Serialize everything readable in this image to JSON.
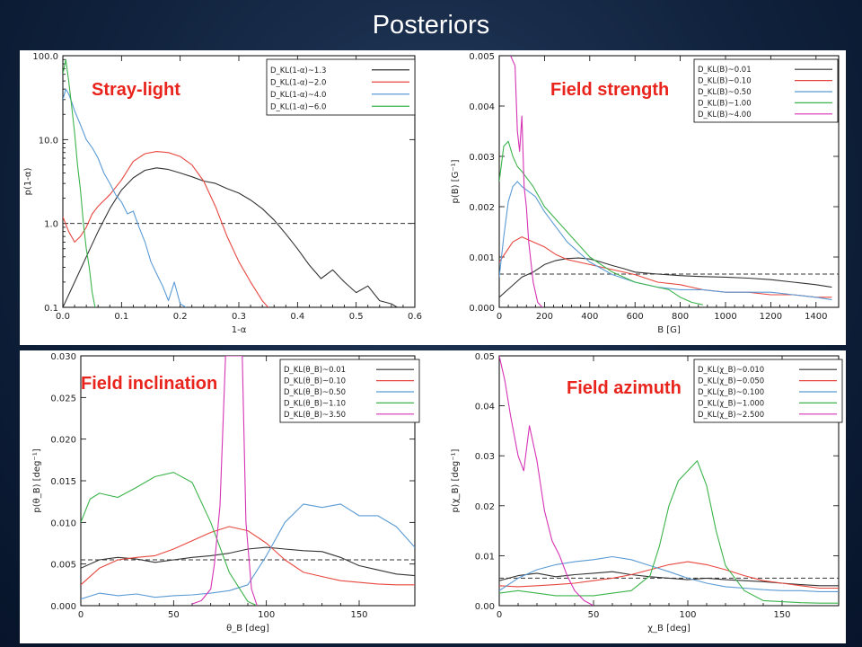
{
  "title": "Posteriors",
  "chart_data": [
    {
      "id": "stray",
      "type": "line",
      "title": "Stray-light",
      "xlabel": "1-α",
      "ylabel": "p(1-α)",
      "xlim": [
        0,
        0.6
      ],
      "ylim": [
        0.1,
        100
      ],
      "yscale": "log",
      "xticks": [
        "0.0",
        "0.1",
        "0.2",
        "0.3",
        "0.4",
        "0.5",
        "0.6"
      ],
      "yticks": [
        "0.1",
        "1.0",
        "10.0",
        "100.0"
      ],
      "legend_placement": "top-right",
      "reference": {
        "style": "dashed",
        "y": 1.0
      },
      "series": [
        {
          "name": "D_KL(1-α)~1.3",
          "color": "#333333",
          "x": [
            0.0,
            0.02,
            0.04,
            0.06,
            0.08,
            0.1,
            0.12,
            0.14,
            0.16,
            0.18,
            0.2,
            0.22,
            0.24,
            0.26,
            0.28,
            0.3,
            0.32,
            0.34,
            0.36,
            0.38,
            0.4,
            0.42,
            0.44,
            0.46,
            0.48,
            0.5,
            0.52,
            0.54,
            0.56,
            0.57
          ],
          "y": [
            0.1,
            0.2,
            0.4,
            0.8,
            1.5,
            2.5,
            3.5,
            4.3,
            4.6,
            4.4,
            4.0,
            3.6,
            3.2,
            3.0,
            2.6,
            2.3,
            1.9,
            1.5,
            1.1,
            0.75,
            0.5,
            0.32,
            0.22,
            0.28,
            0.2,
            0.15,
            0.18,
            0.12,
            0.11,
            0.1
          ]
        },
        {
          "name": "D_KL(1-α)~2.0",
          "color": "#e8473f",
          "x": [
            0.0,
            0.01,
            0.02,
            0.03,
            0.04,
            0.05,
            0.06,
            0.08,
            0.1,
            0.12,
            0.14,
            0.16,
            0.18,
            0.2,
            0.22,
            0.24,
            0.26,
            0.28,
            0.3,
            0.32,
            0.34,
            0.35
          ],
          "y": [
            1.2,
            0.8,
            0.6,
            0.7,
            0.9,
            1.3,
            1.6,
            2.2,
            3.3,
            5.5,
            6.8,
            7.2,
            7.0,
            6.3,
            5.0,
            3.2,
            1.6,
            0.7,
            0.35,
            0.2,
            0.12,
            0.1
          ]
        },
        {
          "name": "D_KL(1-α)~4.0",
          "color": "#5b9bd5",
          "x": [
            0.0,
            0.005,
            0.01,
            0.015,
            0.02,
            0.03,
            0.04,
            0.05,
            0.06,
            0.07,
            0.08,
            0.09,
            0.1,
            0.11,
            0.12,
            0.13,
            0.14,
            0.15,
            0.16,
            0.17,
            0.18,
            0.19,
            0.2,
            0.21
          ],
          "y": [
            30.0,
            40.0,
            35.0,
            28.0,
            22.0,
            15.0,
            10.0,
            8.0,
            6.0,
            4.0,
            3.0,
            2.2,
            1.8,
            1.3,
            1.4,
            0.9,
            0.6,
            0.35,
            0.25,
            0.18,
            0.12,
            0.2,
            0.11,
            0.1
          ]
        },
        {
          "name": "D_KL(1-α)~6.0",
          "color": "#3cb44b",
          "x": [
            0.0,
            0.005,
            0.01,
            0.015,
            0.02,
            0.025,
            0.03,
            0.035,
            0.04,
            0.045,
            0.05,
            0.055
          ],
          "y": [
            60.0,
            90.0,
            50.0,
            25.0,
            12.0,
            5.0,
            2.5,
            1.0,
            0.5,
            0.3,
            0.15,
            0.1
          ]
        }
      ]
    },
    {
      "id": "strength",
      "type": "line",
      "title": "Field strength",
      "xlabel": "B [G]",
      "ylabel": "p(B) [G⁻¹]",
      "xlim": [
        0,
        1500
      ],
      "ylim": [
        0,
        0.005
      ],
      "yscale": "linear",
      "xticks": [
        "0",
        "200",
        "400",
        "600",
        "800",
        "1000",
        "1200",
        "1400"
      ],
      "yticks": [
        "0.000",
        "0.001",
        "0.002",
        "0.003",
        "0.004",
        "0.005"
      ],
      "legend_placement": "top-right",
      "reference": {
        "style": "dashed",
        "y": 0.00066
      },
      "series": [
        {
          "name": "D_KL(B)~0.01",
          "color": "#333333",
          "x": [
            0,
            50,
            100,
            150,
            200,
            250,
            300,
            350,
            400,
            450,
            500,
            550,
            600,
            700,
            800,
            900,
            1000,
            1100,
            1200,
            1300,
            1400,
            1470
          ],
          "y": [
            0.0002,
            0.0004,
            0.0006,
            0.0007,
            0.00085,
            0.00093,
            0.00097,
            0.00098,
            0.00096,
            0.0009,
            0.00083,
            0.00077,
            0.0007,
            0.00066,
            0.00063,
            0.00061,
            0.0006,
            0.00058,
            0.00055,
            0.0005,
            0.00045,
            0.0004
          ]
        },
        {
          "name": "D_KL(B)~0.10",
          "color": "#e8473f",
          "x": [
            0,
            30,
            60,
            100,
            150,
            200,
            250,
            300,
            400,
            500,
            600,
            700,
            800,
            900,
            1000,
            1100,
            1200,
            1300,
            1400,
            1470
          ],
          "y": [
            0.0009,
            0.0011,
            0.0013,
            0.0014,
            0.0013,
            0.0012,
            0.00105,
            0.00095,
            0.00085,
            0.00075,
            0.00065,
            0.0005,
            0.00045,
            0.00035,
            0.0003,
            0.0003,
            0.00025,
            0.00025,
            0.0002,
            0.0002
          ]
        },
        {
          "name": "D_KL(B)~0.50",
          "color": "#5b9bd5",
          "x": [
            0,
            20,
            40,
            60,
            80,
            100,
            130,
            160,
            200,
            250,
            300,
            400,
            500,
            600,
            700,
            800,
            900,
            1000,
            1100,
            1200,
            1300,
            1400,
            1470
          ],
          "y": [
            0.0006,
            0.0014,
            0.0021,
            0.0024,
            0.0025,
            0.0024,
            0.0023,
            0.0022,
            0.0019,
            0.0016,
            0.0013,
            0.0009,
            0.00065,
            0.0005,
            0.0004,
            0.00035,
            0.00035,
            0.0003,
            0.0003,
            0.0003,
            0.00025,
            0.0002,
            0.00015
          ]
        },
        {
          "name": "D_KL(B)~1.00",
          "color": "#3cb44b",
          "x": [
            0,
            20,
            40,
            60,
            80,
            100,
            150,
            200,
            300,
            400,
            500,
            600,
            700,
            750,
            800,
            850,
            900
          ],
          "y": [
            0.0025,
            0.0032,
            0.0033,
            0.003,
            0.0028,
            0.0027,
            0.0024,
            0.002,
            0.0015,
            0.001,
            0.0007,
            0.0005,
            0.0004,
            0.00035,
            0.0002,
            0.0001,
            5e-05
          ]
        },
        {
          "name": "D_KL(B)~4.00",
          "color": "#d633b5",
          "x": [
            50,
            70,
            80,
            90,
            100,
            110,
            120,
            130,
            150,
            170,
            190
          ],
          "y": [
            0.005,
            0.0048,
            0.0035,
            0.0031,
            0.0038,
            0.0024,
            0.002,
            0.0013,
            0.0005,
            0.0001,
            0.0
          ]
        }
      ]
    },
    {
      "id": "inclination",
      "type": "line",
      "title": "Field inclination",
      "xlabel": "θ_B [deg]",
      "ylabel": "p(θ_B) [deg⁻¹]",
      "xlim": [
        0,
        180
      ],
      "ylim": [
        0,
        0.03
      ],
      "yscale": "linear",
      "xticks": [
        "0",
        "50",
        "100",
        "150"
      ],
      "yticks": [
        "0.000",
        "0.005",
        "0.010",
        "0.015",
        "0.020",
        "0.025",
        "0.030"
      ],
      "legend_placement": "top-right",
      "reference": {
        "style": "dashed",
        "y": 0.0055
      },
      "series": [
        {
          "name": "D_KL(θ_B)~0.01",
          "color": "#333333",
          "x": [
            0,
            10,
            20,
            30,
            40,
            50,
            60,
            70,
            80,
            90,
            100,
            110,
            120,
            130,
            140,
            150,
            160,
            170,
            180
          ],
          "y": [
            0.0045,
            0.0055,
            0.0058,
            0.0056,
            0.0052,
            0.0055,
            0.0058,
            0.006,
            0.0063,
            0.0068,
            0.007,
            0.0068,
            0.0066,
            0.0065,
            0.0058,
            0.0048,
            0.0043,
            0.0038,
            0.0036
          ]
        },
        {
          "name": "D_KL(θ_B)~0.10",
          "color": "#e8473f",
          "x": [
            0,
            10,
            20,
            30,
            40,
            50,
            60,
            70,
            80,
            90,
            100,
            110,
            120,
            130,
            140,
            150,
            160,
            170,
            180
          ],
          "y": [
            0.0025,
            0.0045,
            0.0055,
            0.0058,
            0.006,
            0.0068,
            0.0078,
            0.0088,
            0.0095,
            0.009,
            0.0075,
            0.0055,
            0.004,
            0.0035,
            0.003,
            0.0028,
            0.0026,
            0.0025,
            0.0025
          ]
        },
        {
          "name": "D_KL(θ_B)~0.50",
          "color": "#5b9bd5",
          "x": [
            0,
            10,
            20,
            30,
            40,
            50,
            60,
            70,
            80,
            90,
            100,
            110,
            120,
            130,
            140,
            150,
            160,
            170,
            180
          ],
          "y": [
            0.0008,
            0.0015,
            0.0012,
            0.0014,
            0.001,
            0.0012,
            0.0013,
            0.0015,
            0.0018,
            0.0025,
            0.006,
            0.01,
            0.0122,
            0.0118,
            0.0122,
            0.0108,
            0.0108,
            0.0095,
            0.007
          ]
        },
        {
          "name": "D_KL(θ_B)~1.10",
          "color": "#3cb44b",
          "x": [
            0,
            5,
            10,
            20,
            30,
            40,
            50,
            60,
            70,
            80,
            90,
            95
          ],
          "y": [
            0.01,
            0.0128,
            0.0135,
            0.013,
            0.0142,
            0.0155,
            0.016,
            0.0148,
            0.01,
            0.004,
            0.0005,
            0.0
          ]
        },
        {
          "name": "D_KL(θ_B)~3.50",
          "color": "#d633b5",
          "x": [
            60,
            65,
            70,
            72,
            75,
            78,
            80,
            82,
            85,
            87,
            89,
            92,
            95
          ],
          "y": [
            0.0002,
            0.0006,
            0.002,
            0.005,
            0.012,
            0.03,
            0.03,
            0.03,
            0.03,
            0.03,
            0.01,
            0.002,
            0.0
          ]
        }
      ]
    },
    {
      "id": "azimuth",
      "type": "line",
      "title": "Field azimuth",
      "xlabel": "χ_B [deg]",
      "ylabel": "p(χ_B) [deg⁻¹]",
      "xlim": [
        0,
        180
      ],
      "ylim": [
        0,
        0.05
      ],
      "yscale": "linear",
      "xticks": [
        "0",
        "50",
        "100",
        "150"
      ],
      "yticks": [
        "0.00",
        "0.01",
        "0.02",
        "0.03",
        "0.04",
        "0.05"
      ],
      "legend_placement": "top-right",
      "reference": {
        "style": "dashed",
        "y": 0.0055
      },
      "series": [
        {
          "name": "D_KL(χ_B)~0.010",
          "color": "#333333",
          "x": [
            0,
            10,
            20,
            30,
            40,
            50,
            60,
            70,
            80,
            90,
            100,
            110,
            120,
            130,
            140,
            150,
            160,
            170,
            180
          ],
          "y": [
            0.005,
            0.006,
            0.0065,
            0.0058,
            0.0062,
            0.0065,
            0.0068,
            0.0062,
            0.0058,
            0.0055,
            0.0052,
            0.0055,
            0.0052,
            0.005,
            0.0048,
            0.0045,
            0.0042,
            0.004,
            0.004
          ]
        },
        {
          "name": "D_KL(χ_B)~0.050",
          "color": "#e8473f",
          "x": [
            0,
            10,
            20,
            30,
            40,
            50,
            60,
            70,
            80,
            90,
            100,
            110,
            120,
            130,
            140,
            150,
            160,
            170,
            180
          ],
          "y": [
            0.004,
            0.0038,
            0.004,
            0.0042,
            0.0045,
            0.005,
            0.0055,
            0.0062,
            0.0072,
            0.0082,
            0.0088,
            0.0082,
            0.0072,
            0.006,
            0.005,
            0.0045,
            0.004,
            0.0035,
            0.0035
          ]
        },
        {
          "name": "D_KL(χ_B)~0.100",
          "color": "#5b9bd5",
          "x": [
            0,
            10,
            20,
            30,
            40,
            50,
            60,
            70,
            80,
            90,
            100,
            110,
            120,
            130,
            140,
            150,
            160,
            170,
            180
          ],
          "y": [
            0.003,
            0.0055,
            0.0072,
            0.0082,
            0.0088,
            0.0092,
            0.0098,
            0.0092,
            0.008,
            0.0068,
            0.0055,
            0.0045,
            0.0038,
            0.0035,
            0.0032,
            0.003,
            0.003,
            0.0028,
            0.0028
          ]
        },
        {
          "name": "D_KL(χ_B)~1.000",
          "color": "#3cb44b",
          "x": [
            0,
            10,
            20,
            30,
            40,
            50,
            60,
            70,
            80,
            85,
            90,
            95,
            100,
            105,
            110,
            115,
            120,
            130,
            140,
            150,
            160,
            170,
            180
          ],
          "y": [
            0.0025,
            0.003,
            0.0025,
            0.002,
            0.002,
            0.002,
            0.0025,
            0.003,
            0.006,
            0.012,
            0.02,
            0.025,
            0.027,
            0.029,
            0.024,
            0.015,
            0.008,
            0.003,
            0.001,
            0.0008,
            0.0006,
            0.0005,
            0.0005
          ]
        },
        {
          "name": "D_KL(χ_B)~2.500",
          "color": "#d633b5",
          "x": [
            0,
            3,
            6,
            10,
            13,
            16,
            20,
            24,
            28,
            32,
            36,
            40,
            45,
            50
          ],
          "y": [
            0.05,
            0.045,
            0.038,
            0.03,
            0.027,
            0.036,
            0.029,
            0.019,
            0.013,
            0.01,
            0.006,
            0.003,
            0.001,
            0.0
          ]
        }
      ]
    }
  ]
}
